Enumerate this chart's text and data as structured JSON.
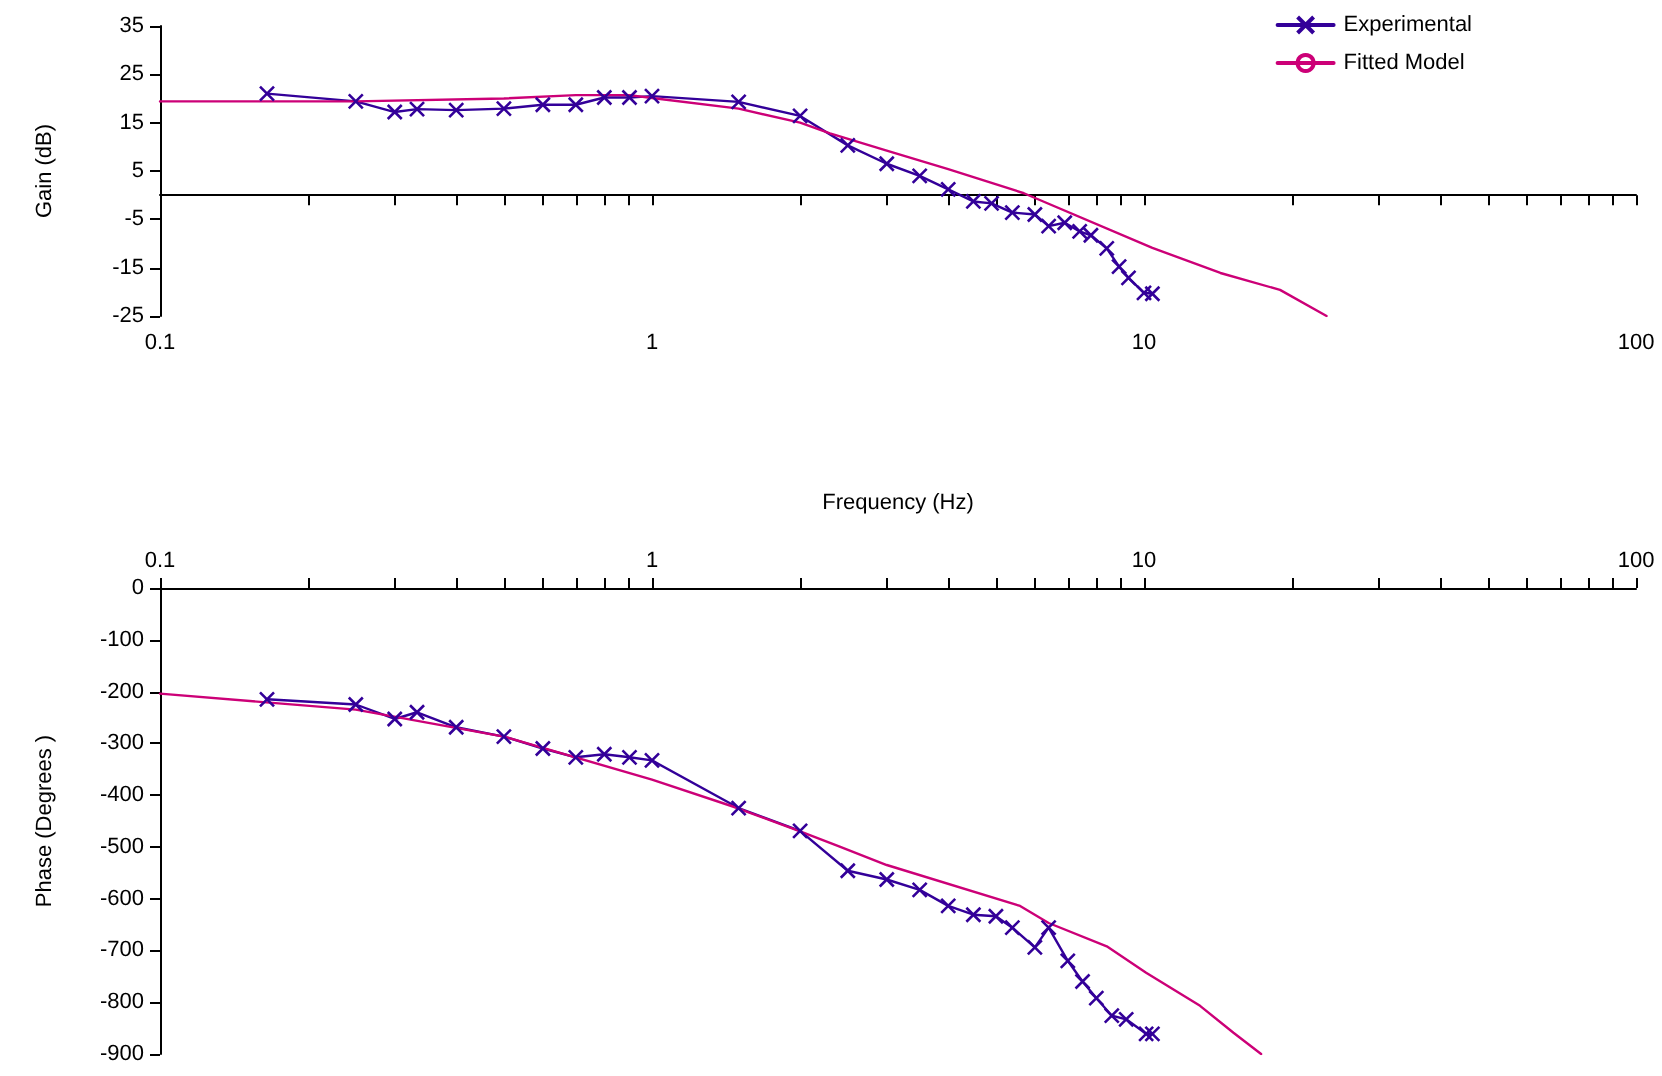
{
  "chart_data": [
    {
      "type": "line",
      "xlabel": "Frequency (Hz)",
      "ylabel": "Gain (dB)",
      "log": "x",
      "legend": "top right",
      "xlim": [
        0.1,
        100
      ],
      "xticks": [
        0.1,
        {
          "value": 0.2,
          "label": null
        },
        {
          "value": 0.3,
          "label": null
        },
        {
          "value": 0.4,
          "label": null
        },
        {
          "value": 0.5,
          "label": null
        },
        {
          "value": 0.6,
          "label": null
        },
        {
          "value": 0.7,
          "label": null
        },
        {
          "value": 0.8,
          "label": null
        },
        {
          "value": 0.9,
          "label": null
        },
        1,
        {
          "value": 2,
          "label": null
        },
        {
          "value": 3,
          "label": null
        },
        {
          "value": 4,
          "label": null
        },
        {
          "value": 5,
          "label": null
        },
        {
          "value": 6,
          "label": null
        },
        {
          "value": 7,
          "label": null
        },
        {
          "value": 8,
          "label": null
        },
        {
          "value": 9,
          "label": null
        },
        10,
        {
          "value": 20,
          "label": null
        },
        {
          "value": 30,
          "label": null
        },
        {
          "value": 40,
          "label": null
        },
        {
          "value": 50,
          "label": null
        },
        {
          "value": 60,
          "label": null
        },
        {
          "value": 70,
          "label": null
        },
        {
          "value": 80,
          "label": null
        },
        {
          "value": 90,
          "label": null
        },
        100
      ],
      "ylim": [
        -25,
        35
      ],
      "yticks": [
        -25,
        -15,
        -5,
        5,
        15,
        25,
        35
      ],
      "series": [
        {
          "name": "Experimental",
          "color": "#330099",
          "marker": "cross",
          "x": [
            0.165,
            0.25,
            0.3,
            0.333,
            0.4,
            0.5,
            0.6,
            0.7,
            0.8,
            0.9,
            1,
            1.5,
            2,
            2.5,
            3,
            3.5,
            4,
            4.5,
            4.9,
            5.4,
            6,
            6.4,
            6.9,
            7.4,
            7.8,
            8.4,
            8.9,
            9.3,
            10,
            10.4
          ],
          "values": [
            21,
            19.4,
            17.2,
            17.8,
            17.6,
            17.9,
            18.7,
            18.7,
            20.2,
            20.2,
            20.5,
            19.3,
            16.4,
            10.3,
            6.5,
            4,
            1.2,
            -1.3,
            -1.7,
            -3.6,
            -4,
            -6.4,
            -5.7,
            -7.5,
            -8.3,
            -11,
            -14.8,
            -17.1,
            -20.2,
            -20.4
          ]
        },
        {
          "name": "Fitted Model",
          "color": "#cc0077",
          "marker": "none",
          "x": [
            0.1,
            0.25,
            0.5,
            0.7,
            0.9,
            1,
            1.5,
            2,
            2.3,
            3,
            4,
            5.7,
            10.4,
            14.3,
            18.9,
            23.5
          ],
          "values": [
            19.4,
            19.4,
            20,
            20.7,
            20.7,
            20.1,
            17.9,
            15,
            12.8,
            9.2,
            5.4,
            0.4,
            -10.9,
            -16.1,
            -19.6,
            -25
          ]
        }
      ]
    },
    {
      "type": "line",
      "ylabel": "Phase (Degrees )",
      "log": "x",
      "xlim": [
        0.1,
        100
      ],
      "xticks": [
        0.1,
        {
          "value": 0.2,
          "label": null
        },
        {
          "value": 0.3,
          "label": null
        },
        {
          "value": 0.4,
          "label": null
        },
        {
          "value": 0.5,
          "label": null
        },
        {
          "value": 0.6,
          "label": null
        },
        {
          "value": 0.7,
          "label": null
        },
        {
          "value": 0.8,
          "label": null
        },
        {
          "value": 0.9,
          "label": null
        },
        1,
        {
          "value": 2,
          "label": null
        },
        {
          "value": 3,
          "label": null
        },
        {
          "value": 4,
          "label": null
        },
        {
          "value": 5,
          "label": null
        },
        {
          "value": 6,
          "label": null
        },
        {
          "value": 7,
          "label": null
        },
        {
          "value": 8,
          "label": null
        },
        {
          "value": 9,
          "label": null
        },
        10,
        {
          "value": 20,
          "label": null
        },
        {
          "value": 30,
          "label": null
        },
        {
          "value": 40,
          "label": null
        },
        {
          "value": 50,
          "label": null
        },
        {
          "value": 60,
          "label": null
        },
        {
          "value": 70,
          "label": null
        },
        {
          "value": 80,
          "label": null
        },
        {
          "value": 90,
          "label": null
        },
        100
      ],
      "ylim": [
        -900,
        0
      ],
      "yticks": [
        -900,
        -800,
        -700,
        -600,
        -500,
        -400,
        -300,
        -200,
        -100,
        0
      ],
      "series": [
        {
          "color": "#330099",
          "marker": "cross",
          "x": [
            0.165,
            0.25,
            0.3,
            0.333,
            0.4,
            0.5,
            0.6,
            0.7,
            0.8,
            0.9,
            1,
            1.5,
            2,
            2.5,
            3,
            3.5,
            4,
            4.5,
            5,
            5.4,
            6,
            6.4,
            7,
            7.5,
            8,
            8.6,
            9.2,
            10.1,
            10.4
          ],
          "values": [
            -215,
            -225,
            -253,
            -240,
            -269,
            -287,
            -310,
            -327,
            -321,
            -327,
            -333,
            -425,
            -469,
            -546,
            -563,
            -583,
            -614,
            -631,
            -634,
            -656,
            -694,
            -656,
            -720,
            -760,
            -792,
            -826,
            -833,
            -861,
            -861
          ]
        },
        {
          "color": "#cc0077",
          "marker": "none",
          "x": [
            0.1,
            0.25,
            0.5,
            1,
            1.46,
            2,
            2.4,
            3,
            5.6,
            6.4,
            8.4,
            10.1,
            13,
            15.2,
            17.3
          ],
          "values": [
            -204,
            -235,
            -287,
            -370,
            -422,
            -470,
            -499,
            -535,
            -614,
            -647,
            -692,
            -743,
            -807,
            -859,
            -900
          ]
        }
      ]
    }
  ]
}
